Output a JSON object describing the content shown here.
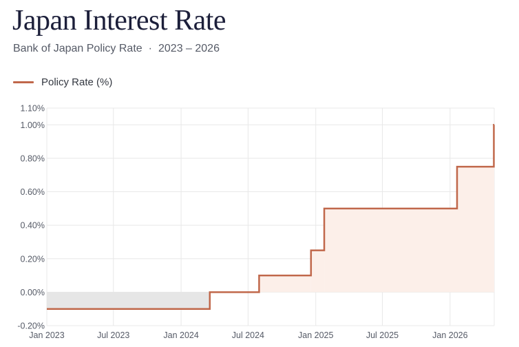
{
  "header": {
    "title": "Japan Interest Rate",
    "subtitle_source": "Bank of Japan Policy Rate",
    "subtitle_separator": "·",
    "subtitle_range": "2023 – 2026"
  },
  "colors": {
    "line": "#c0674a",
    "fill_positive": "#fcefe9",
    "fill_negative": "#e6e6e6",
    "grid": "#e8e8e8"
  },
  "chart_data": {
    "type": "line",
    "step": true,
    "title": "Japan Interest Rate",
    "subtitle": "Bank of Japan Policy Rate · 2023 – 2026",
    "xlabel": "",
    "ylabel": "",
    "legend": "top-left",
    "grid": true,
    "x_ticks": [
      {
        "date": "2023-01-01",
        "label": "Jan 2023"
      },
      {
        "date": "2023-07-01",
        "label": "Jul 2023"
      },
      {
        "date": "2024-01-01",
        "label": "Jan 2024"
      },
      {
        "date": "2024-07-01",
        "label": "Jul 2024"
      },
      {
        "date": "2025-01-01",
        "label": "Jan 2025"
      },
      {
        "date": "2025-07-01",
        "label": "Jul 2025"
      },
      {
        "date": "2026-01-01",
        "label": "Jan 2026"
      }
    ],
    "y_ticks": [
      -0.2,
      0.0,
      0.2,
      0.4,
      0.6,
      0.8,
      1.0,
      1.1
    ],
    "y_tick_labels": [
      "-0.20%",
      "0.00%",
      "0.20%",
      "0.40%",
      "0.60%",
      "0.80%",
      "1.00%",
      "1.10%"
    ],
    "xlim": [
      "2023-01-01",
      "2026-05-01"
    ],
    "ylim": [
      -0.2,
      1.1
    ],
    "series": [
      {
        "name": "Policy Rate (%)",
        "points": [
          {
            "date": "2023-01-01",
            "value": -0.1
          },
          {
            "date": "2024-03-19",
            "value": 0.0
          },
          {
            "date": "2024-07-31",
            "value": 0.1
          },
          {
            "date": "2024-12-19",
            "value": 0.25
          },
          {
            "date": "2025-01-24",
            "value": 0.5
          },
          {
            "date": "2026-01-20",
            "value": 0.75
          },
          {
            "date": "2026-04-30",
            "value": 1.0
          }
        ],
        "end_date": "2026-05-01"
      }
    ]
  }
}
